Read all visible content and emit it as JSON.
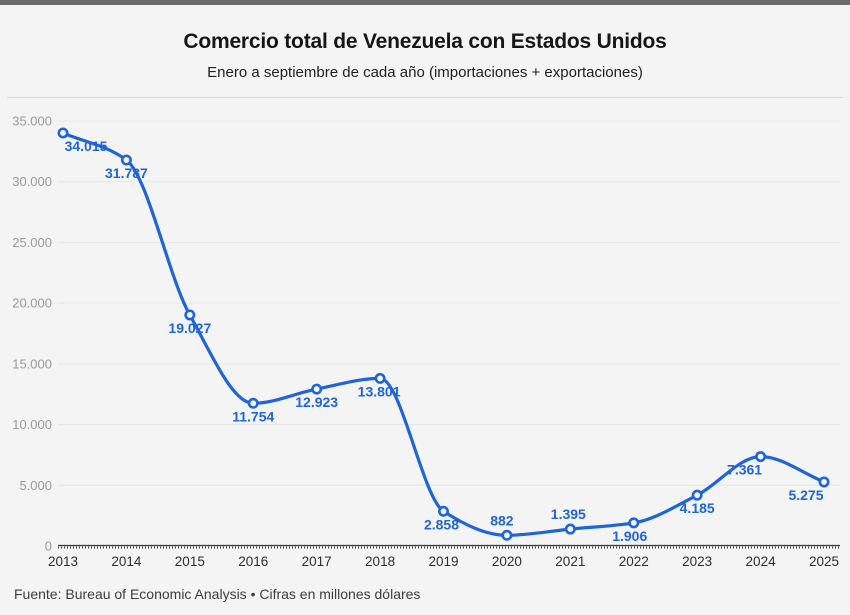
{
  "page": {
    "topbar_color": "#6a6a6a",
    "background_color": "#f4f4f4"
  },
  "header": {
    "title": "Comercio total de Venezuela con Estados Unidos",
    "subtitle": "Enero a septiembre de cada año (importaciones + exportaciones)"
  },
  "footer": {
    "source": "Fuente: Bureau of Economic Analysis • Cifras en millones dólares"
  },
  "chart_data": {
    "type": "line",
    "title": "Comercio total de Venezuela con Estados Unidos",
    "subtitle": "Enero a septiembre de cada año (importaciones + exportaciones)",
    "x": [
      2013,
      2014,
      2015,
      2016,
      2017,
      2018,
      2019,
      2020,
      2021,
      2022,
      2023,
      2024,
      2025
    ],
    "values": [
      34015,
      31787,
      19027,
      11754,
      12923,
      13801,
      2858,
      882,
      1395,
      1906,
      4185,
      7361,
      5275
    ],
    "value_labels": [
      "34.015",
      "31.787",
      "19.027",
      "11.754",
      "12.923",
      "13.801",
      "2.858",
      "882",
      "1.395",
      "1.906",
      "4.185",
      "7.361",
      "5.275"
    ],
    "label_layout": [
      {
        "pos": "below",
        "dx": 23
      },
      {
        "pos": "below",
        "dx": 0
      },
      {
        "pos": "below",
        "dx": 0
      },
      {
        "pos": "below",
        "dx": 0
      },
      {
        "pos": "below",
        "dx": 0
      },
      {
        "pos": "below",
        "dx": -1
      },
      {
        "pos": "below",
        "dx": -2
      },
      {
        "pos": "above",
        "dx": -5
      },
      {
        "pos": "above",
        "dx": -2
      },
      {
        "pos": "below",
        "dx": -4
      },
      {
        "pos": "below",
        "dx": 0
      },
      {
        "pos": "below",
        "dx": -16
      },
      {
        "pos": "below",
        "dx": -18
      }
    ],
    "xlabel": "",
    "ylabel": "",
    "ylim": [
      0,
      35000
    ],
    "yticks": [
      0,
      5000,
      10000,
      15000,
      20000,
      25000,
      30000,
      35000
    ],
    "ytick_labels": [
      "0",
      "5.000",
      "10.000",
      "15.000",
      "20.000",
      "25.000",
      "30.000",
      "35.000"
    ],
    "grid": true,
    "legend": "none",
    "curve": "monotone",
    "marker": "open-circle",
    "colors": {
      "line": "#2065d8",
      "data_label": "#2065d8",
      "marker_fill": "#f7f7f7",
      "ytick_label": "#9a9a9a",
      "xtick_label": "#2e2e2e",
      "gridline": "#e7e7e7",
      "axis": "#3a3a3a"
    }
  }
}
